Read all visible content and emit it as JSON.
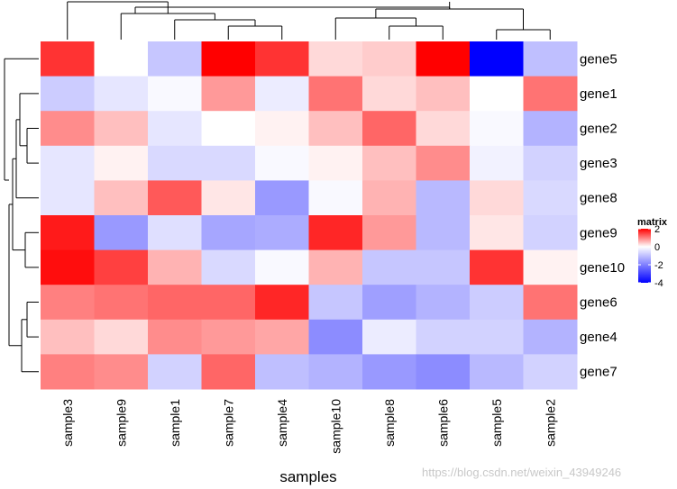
{
  "chart_data": {
    "type": "heatmap",
    "rows": [
      "gene5",
      "gene1",
      "gene2",
      "gene3",
      "gene8",
      "gene9",
      "gene10",
      "gene6",
      "gene4",
      "gene7"
    ],
    "columns": [
      "sample3",
      "sample9",
      "sample1",
      "sample7",
      "sample4",
      "sample10",
      "sample8",
      "sample6",
      "sample5",
      "sample2"
    ],
    "values": [
      [
        1.6,
        0.0,
        -0.9,
        2.0,
        1.6,
        0.3,
        0.4,
        2.0,
        -4.0,
        -1.0
      ],
      [
        -0.8,
        -0.4,
        -0.1,
        0.8,
        -0.3,
        1.1,
        0.3,
        0.5,
        0.0,
        1.1
      ],
      [
        0.9,
        0.5,
        -0.4,
        0.0,
        0.1,
        0.5,
        1.2,
        0.3,
        -0.1,
        -1.2
      ],
      [
        -0.4,
        0.1,
        -0.6,
        -0.6,
        -0.1,
        0.1,
        0.5,
        0.9,
        -0.2,
        -0.7
      ],
      [
        -0.4,
        0.5,
        1.3,
        0.2,
        -1.6,
        -0.1,
        0.6,
        -1.1,
        0.3,
        -0.6
      ],
      [
        1.8,
        -1.6,
        -0.5,
        -1.4,
        -1.3,
        1.7,
        0.8,
        -1.1,
        0.2,
        -0.7
      ],
      [
        1.9,
        1.5,
        0.6,
        -0.6,
        -0.1,
        0.6,
        -0.9,
        -0.9,
        1.6,
        0.1
      ],
      [
        1.0,
        1.1,
        1.2,
        1.2,
        1.7,
        -0.9,
        -1.5,
        -1.2,
        -0.8,
        1.1
      ],
      [
        0.5,
        0.3,
        0.9,
        0.8,
        0.7,
        -1.8,
        -0.3,
        -0.7,
        -0.7,
        -1.2
      ],
      [
        1.0,
        0.9,
        -0.7,
        1.2,
        -1.0,
        -1.2,
        -1.6,
        -1.8,
        -1.1,
        -0.7
      ]
    ],
    "xlabel": "samples",
    "legend": {
      "title": "matrix",
      "position": "right",
      "ticks": [
        2,
        0,
        -2,
        -4
      ],
      "tick_labels": [
        "2",
        "0",
        "-2",
        "-4"
      ],
      "min": -4,
      "max": 2
    },
    "color_scale": {
      "low": "#0000ff",
      "mid": "#ffffff",
      "high": "#ff0000"
    },
    "grid": false
  },
  "watermark": "https://blog.csdn.net/weixin_43949246"
}
